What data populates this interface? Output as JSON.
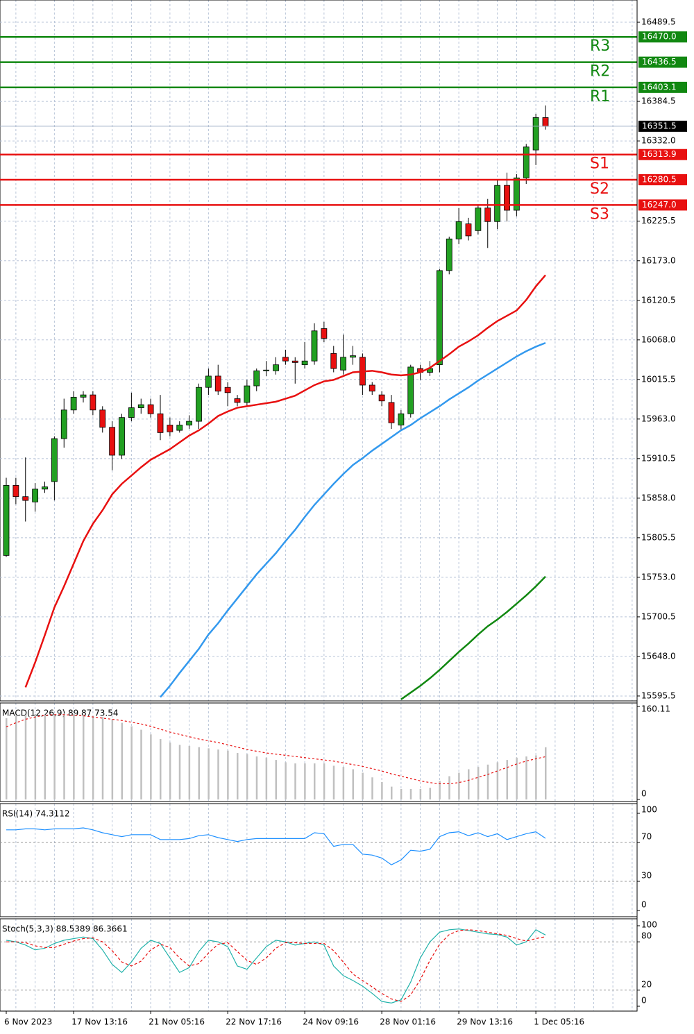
{
  "chart_data": [
    {
      "type": "candlestick",
      "categories": [
        "6 Nov 2023",
        null,
        null,
        null,
        null,
        null,
        null,
        "17 Nov 13:16",
        null,
        null,
        null,
        null,
        null,
        null,
        null,
        "21 Nov 05:16",
        null,
        null,
        null,
        null,
        null,
        null,
        null,
        "22 Nov 17:16",
        null,
        null,
        null,
        null,
        null,
        null,
        null,
        "24 Nov 09:16",
        null,
        null,
        null,
        null,
        null,
        null,
        null,
        "28 Nov 01:16",
        null,
        null,
        null,
        null,
        null,
        null,
        null,
        "29 Nov 13:16",
        null,
        null,
        null,
        null,
        null,
        null,
        null,
        "1 Dec 05:16",
        null
      ],
      "open": [
        15782,
        15875,
        15860,
        15853,
        15870,
        15880,
        15937,
        15975,
        15992,
        15995,
        15975,
        15952,
        15915,
        15965,
        15978,
        15982,
        15970,
        15955,
        15948,
        15955,
        15960,
        16005,
        16020,
        16005,
        15990,
        15985,
        16007,
        16027,
        16027,
        16045,
        16040,
        16035,
        16040,
        16083,
        16050,
        16028,
        16045,
        16045,
        16008,
        15995,
        15985,
        15955,
        15970,
        16030,
        16025,
        16035,
        16160,
        16202,
        16222,
        16213,
        16243,
        16225,
        16273,
        16240,
        16283,
        16320,
        16363
      ],
      "high": [
        15885,
        15885,
        15912,
        15878,
        15880,
        15940,
        15990,
        16000,
        16000,
        16000,
        15980,
        15960,
        15970,
        15998,
        15990,
        15990,
        15995,
        15965,
        15960,
        15968,
        16010,
        16030,
        16035,
        16012,
        15995,
        16015,
        16030,
        16040,
        16045,
        16055,
        16045,
        16065,
        16090,
        16092,
        16060,
        16075,
        16060,
        16050,
        16012,
        16000,
        15995,
        15975,
        16035,
        16035,
        16040,
        16162,
        16205,
        16243,
        16230,
        16247,
        16255,
        16280,
        16290,
        16288,
        16328,
        16368,
        16379
      ],
      "low": [
        15780,
        15850,
        15827,
        15840,
        15865,
        15855,
        15925,
        15970,
        15985,
        15968,
        15945,
        15895,
        15910,
        15960,
        15970,
        15965,
        15935,
        15940,
        15945,
        15950,
        15950,
        15995,
        15995,
        15980,
        15980,
        15980,
        16000,
        16020,
        16022,
        16035,
        16010,
        16030,
        16035,
        16065,
        16025,
        16022,
        16035,
        15995,
        15995,
        15980,
        15950,
        15948,
        15965,
        16015,
        16020,
        16025,
        16155,
        16195,
        16200,
        16208,
        16190,
        16215,
        16225,
        16232,
        16275,
        16300,
        16347
      ],
      "close": [
        15875,
        15860,
        15855,
        15870,
        15873,
        15937,
        15975,
        15992,
        15995,
        15975,
        15952,
        15915,
        15965,
        15978,
        15982,
        15970,
        15945,
        15946,
        15955,
        15960,
        16005,
        16020,
        16000,
        15998,
        15985,
        16007,
        16027,
        16028,
        16035,
        16040,
        16038,
        16040,
        16080,
        16070,
        16030,
        16045,
        16047,
        16008,
        16000,
        15987,
        15958,
        15970,
        16032,
        16025,
        16030,
        16160,
        16202,
        16225,
        16206,
        16243,
        16225,
        16273,
        16240,
        16283,
        16324,
        16363,
        16351.5
      ],
      "up_color": "#22a022",
      "down_color": "#e81010",
      "series": [
        {
          "color": "#e81010",
          "values": [
            null,
            null,
            15607,
            15640,
            15676,
            15713,
            15741,
            15771,
            15801,
            15824,
            15842,
            15863,
            15877,
            15888,
            15899,
            15909,
            15916,
            15923,
            15932,
            15941,
            15948,
            15957,
            15967,
            15973,
            15978,
            15980,
            15982,
            15984,
            15986,
            15990,
            15994,
            16001,
            16008,
            16013,
            16015,
            16020,
            16025,
            16026,
            16027,
            16025,
            16022,
            16021,
            16022,
            16025,
            16031,
            16040,
            16049,
            16059,
            16066,
            16074,
            16084,
            16093,
            16100,
            16107,
            16121,
            16139,
            16154
          ]
        },
        {
          "color": "#3399ee",
          "values": [
            null,
            null,
            null,
            null,
            null,
            null,
            null,
            null,
            null,
            null,
            null,
            null,
            null,
            null,
            null,
            null,
            15594,
            15609,
            15626,
            15642,
            15658,
            15677,
            15692,
            15709,
            15725,
            15741,
            15757,
            15771,
            15785,
            15801,
            15816,
            15833,
            15849,
            15863,
            15877,
            15890,
            15902,
            15911,
            15921,
            15930,
            15939,
            15948,
            15955,
            15964,
            15972,
            15980,
            15989,
            15997,
            16005,
            16014,
            16022,
            16030,
            16038,
            16046,
            16053,
            16059,
            16064
          ]
        },
        {
          "color": "#118811",
          "values": [
            null,
            null,
            null,
            null,
            null,
            null,
            null,
            null,
            null,
            null,
            null,
            null,
            null,
            null,
            null,
            null,
            null,
            null,
            null,
            null,
            null,
            null,
            null,
            null,
            null,
            null,
            null,
            null,
            null,
            null,
            null,
            null,
            null,
            null,
            null,
            null,
            null,
            null,
            null,
            null,
            null,
            15591,
            15600,
            15609,
            15619,
            15630,
            15642,
            15654,
            15665,
            15677,
            15688,
            15697,
            15707,
            15718,
            15729,
            15741,
            15754
          ]
        }
      ],
      "levels": [
        {
          "name": "R3",
          "value": 16470,
          "value_label": "16470.0",
          "color": "#118811"
        },
        {
          "name": "R2",
          "value": 16436.5,
          "value_label": "16436.5",
          "color": "#118811"
        },
        {
          "name": "R1",
          "value": 16403.1,
          "value_label": "16403.1",
          "color": "#118811"
        },
        {
          "name": "S1",
          "value": 16313.9,
          "value_label": "16313.9",
          "color": "#e81010"
        },
        {
          "name": "S2",
          "value": 16280.5,
          "value_label": "16280.5",
          "color": "#e81010"
        },
        {
          "name": "S3",
          "value": 16247,
          "value_label": "16247.0",
          "color": "#e81010"
        }
      ],
      "last_price": 16351.5,
      "last_price_label": "16351.5",
      "ylim": [
        15589,
        16519
      ],
      "yticks": [
        16489.5,
        16384.5,
        {
          "value": 16332,
          "label": "16332.0"
        },
        16225.5,
        {
          "value": 16173,
          "label": "16173.0"
        },
        16120.5,
        {
          "value": 16068,
          "label": "16068.0"
        },
        16015.5,
        {
          "value": 15963,
          "label": "15963.0"
        },
        15910.5,
        {
          "value": 15858,
          "label": "15858.0"
        },
        15805.5,
        {
          "value": 15753,
          "label": "15753.0"
        },
        15700.5,
        {
          "value": 15648,
          "label": "15648.0"
        },
        15595.5
      ],
      "grid": true
    },
    {
      "type": "macd",
      "title": "MACD(12,26,9) 89.87 73.54",
      "histogram": [
        140,
        144,
        146,
        147,
        146,
        147,
        148,
        147,
        146,
        144,
        142,
        138,
        132,
        126,
        120,
        112,
        104,
        98,
        94,
        92,
        90,
        88,
        86,
        84,
        80,
        78,
        74,
        72,
        68,
        64,
        62,
        62,
        62,
        62,
        58,
        56,
        52,
        46,
        38,
        30,
        22,
        18,
        18,
        18,
        20,
        32,
        40,
        46,
        52,
        56,
        60,
        64,
        68,
        72,
        74,
        76,
        89.87
      ],
      "signal": [
        125,
        132,
        138,
        142,
        145,
        146,
        146,
        145,
        144,
        142,
        140,
        138,
        136,
        133,
        130,
        126,
        121,
        116,
        112,
        108,
        104,
        101,
        98,
        94,
        90,
        86,
        83,
        80,
        78,
        76,
        74,
        72,
        70,
        68,
        66,
        63,
        60,
        57,
        53,
        49,
        44,
        40,
        36,
        32,
        29,
        27,
        27,
        29,
        33,
        38,
        43,
        49,
        55,
        61,
        66,
        70,
        73.54
      ],
      "histogram_color": "#c0c0c0",
      "signal_color": "#e81010",
      "ylim": [
        0,
        160.11
      ],
      "yticks": [
        160.11,
        0
      ]
    },
    {
      "type": "line",
      "title": "RSI(14) 74.3112",
      "values": [
        83,
        83,
        84,
        84,
        83,
        84,
        84,
        84,
        85,
        83,
        80,
        78,
        76,
        78,
        78,
        78,
        73,
        73,
        73,
        74,
        77,
        78,
        75,
        73,
        71,
        73,
        74,
        74,
        74,
        74,
        74,
        74,
        80,
        79,
        66,
        68,
        68,
        58,
        57,
        54,
        47,
        52,
        62,
        61,
        63,
        76,
        80,
        81,
        77,
        80,
        76,
        79,
        73,
        76,
        79,
        81,
        74.3112
      ],
      "color": "#1e90ff",
      "ylim": [
        0,
        100
      ],
      "yticks": [
        100,
        70,
        30,
        0
      ],
      "levels": [
        70,
        30
      ]
    },
    {
      "type": "stoch",
      "title": "Stoch(5,3,3) 88.5389 86.3661",
      "series": [
        {
          "color": "#20b2aa",
          "values": [
            82,
            80,
            76,
            70,
            72,
            78,
            82,
            84,
            86,
            84,
            70,
            52,
            42,
            55,
            72,
            82,
            78,
            60,
            42,
            48,
            68,
            82,
            80,
            74,
            50,
            46,
            60,
            74,
            82,
            80,
            76,
            78,
            80,
            76,
            50,
            38,
            32,
            25,
            16,
            6,
            4,
            8,
            30,
            60,
            80,
            92,
            95,
            96,
            94,
            92,
            90,
            89,
            86,
            76,
            80,
            95,
            88.5389
          ]
        },
        {
          "color": "#e81010",
          "values": [
            80,
            80,
            79,
            75,
            73,
            73,
            77,
            81,
            84,
            85,
            80,
            69,
            55,
            50,
            56,
            70,
            77,
            73,
            60,
            50,
            53,
            66,
            77,
            79,
            68,
            57,
            52,
            60,
            72,
            79,
            79,
            78,
            78,
            78,
            69,
            55,
            40,
            32,
            24,
            16,
            9,
            6,
            14,
            33,
            57,
            77,
            89,
            94,
            95,
            94,
            92,
            90,
            88,
            84,
            81,
            84,
            86.3661
          ]
        }
      ],
      "ylim": [
        0,
        100
      ],
      "yticks": [
        100,
        80,
        20,
        0
      ],
      "levels": [
        80,
        20
      ]
    }
  ]
}
